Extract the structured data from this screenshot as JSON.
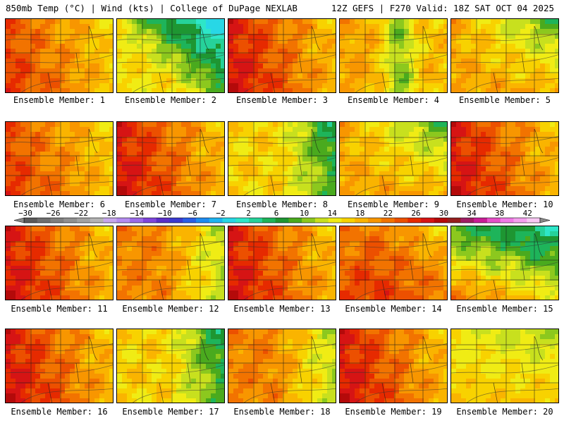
{
  "header": {
    "left": "850mb Temp (°C) | Wind (kts) | College of DuPage NEXLAB",
    "right": "12Z GEFS | F270 Valid: 18Z SAT OCT 04 2025"
  },
  "panels": [
    {
      "label": "Ensemble Member: 1",
      "regime": "warm-west"
    },
    {
      "label": "Ensemble Member: 2",
      "regime": "cool-front-ne"
    },
    {
      "label": "Ensemble Member: 3",
      "regime": "hot-west"
    },
    {
      "label": "Ensemble Member: 4",
      "regime": "cool-center"
    },
    {
      "label": "Ensemble Member: 5",
      "regime": "cool-ne"
    },
    {
      "label": "Ensemble Member: 6",
      "regime": "warm-west"
    },
    {
      "label": "Ensemble Member: 7",
      "regime": "hot-west"
    },
    {
      "label": "Ensemble Member: 8",
      "regime": "cold-east"
    },
    {
      "label": "Ensemble Member: 9",
      "regime": "cool-ne"
    },
    {
      "label": "Ensemble Member: 10",
      "regime": "hot-west"
    },
    {
      "label": "Ensemble Member: 11",
      "regime": "hot-west"
    },
    {
      "label": "Ensemble Member: 12",
      "regime": "cool-east"
    },
    {
      "label": "Ensemble Member: 13",
      "regime": "hot-west"
    },
    {
      "label": "Ensemble Member: 14",
      "regime": "hot-center"
    },
    {
      "label": "Ensemble Member: 15",
      "regime": "cool-north"
    },
    {
      "label": "Ensemble Member: 16",
      "regime": "hot-west"
    },
    {
      "label": "Ensemble Member: 17",
      "regime": "cold-east"
    },
    {
      "label": "Ensemble Member: 18",
      "regime": "cool-east"
    },
    {
      "label": "Ensemble Member: 19",
      "regime": "hot-west"
    },
    {
      "label": "Ensemble Member: 20",
      "regime": "mild"
    }
  ],
  "colorbar": {
    "tick_labels": [
      "−30",
      "−26",
      "−22",
      "−18",
      "−14",
      "−10",
      "−6",
      "−2",
      "2",
      "6",
      "10",
      "14",
      "18",
      "22",
      "26",
      "30",
      "34",
      "38",
      "42"
    ],
    "colors": [
      "#5a5a5a",
      "#6e6e6e",
      "#7f7f7f",
      "#909090",
      "#a2a2a2",
      "#b4b4b4",
      "#c6a7ec",
      "#b48cf0",
      "#9a6ae8",
      "#7e45dc",
      "#5a2fc8",
      "#3a3ad0",
      "#2a5ee6",
      "#1e8cf0",
      "#1eb4f0",
      "#28d7e6",
      "#2ee6c8",
      "#26d29a",
      "#1eb45a",
      "#1e9632",
      "#4aaa1e",
      "#8cc81e",
      "#c8e01e",
      "#f0ec14",
      "#f8d200",
      "#fab400",
      "#f89600",
      "#f27300",
      "#ec5000",
      "#e62a00",
      "#d61414",
      "#b40a0a",
      "#961e1e",
      "#a01e64",
      "#c81e96",
      "#e650c8",
      "#f07ae6",
      "#f4a0ee",
      "#f8c8f4"
    ]
  }
}
